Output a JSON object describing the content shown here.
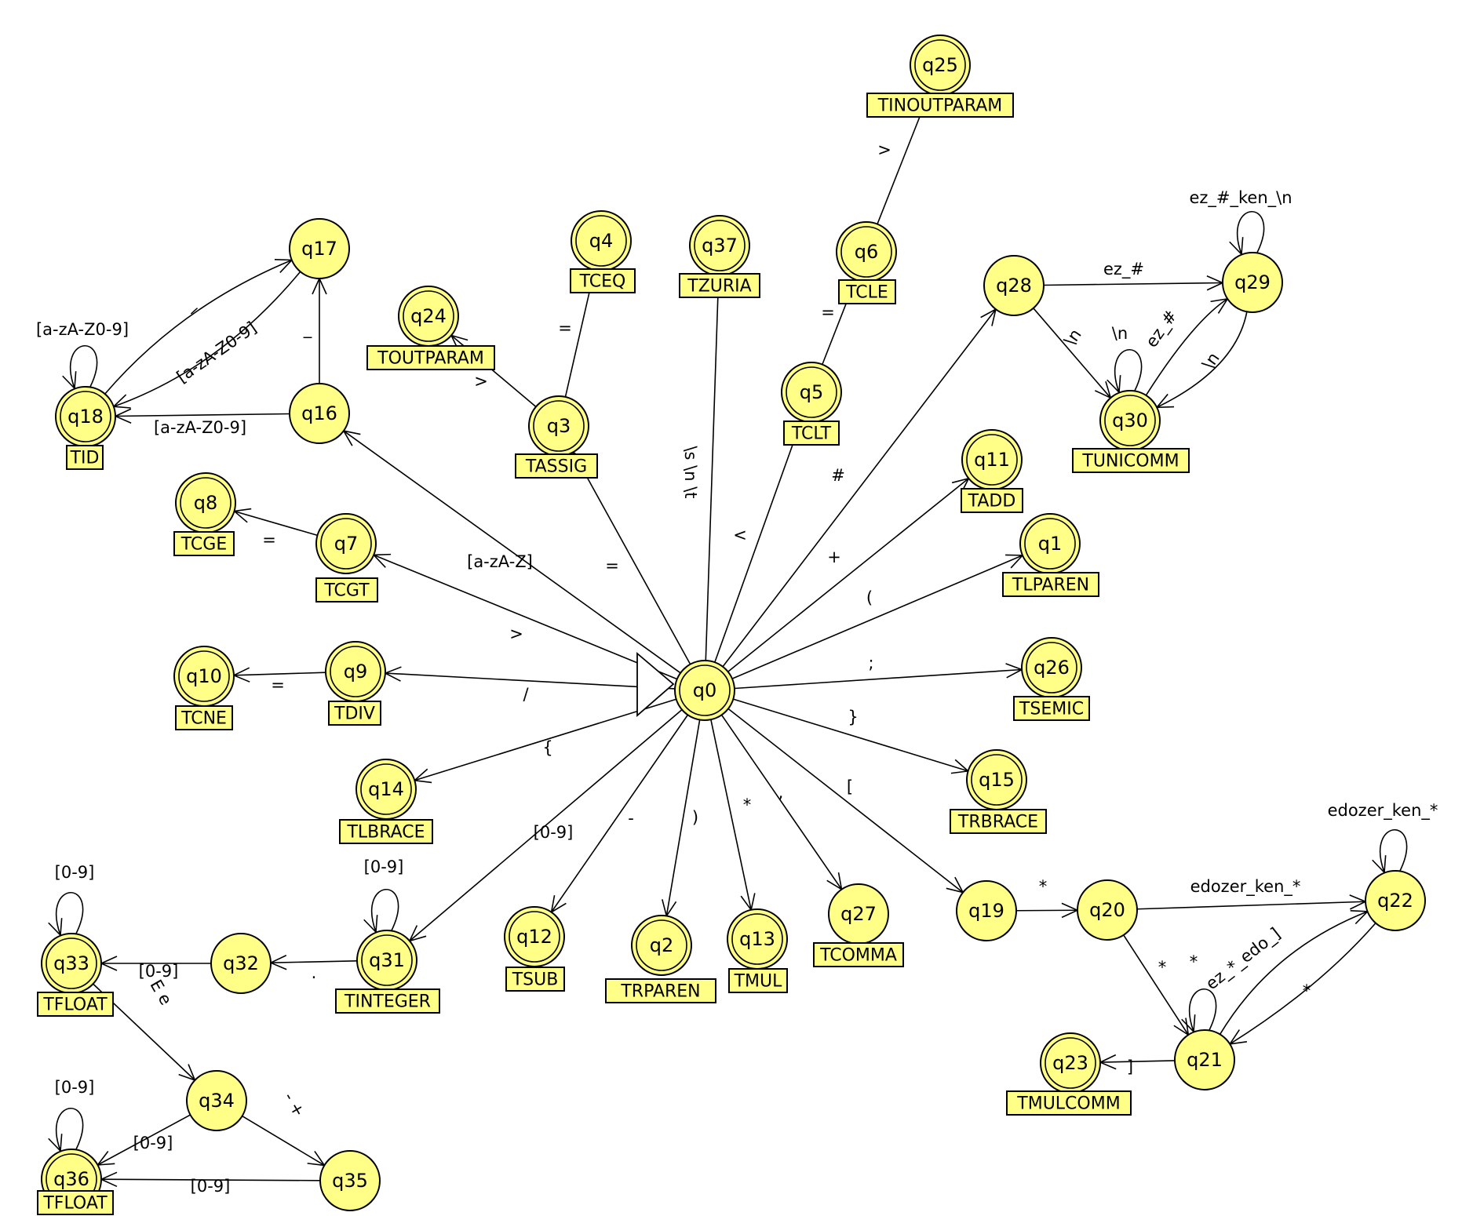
{
  "states": [
    {
      "id": "q0",
      "label": "q0",
      "final": true
    },
    {
      "id": "q1",
      "label": "q1",
      "final": true,
      "token": "TLPAREN"
    },
    {
      "id": "q2",
      "label": "q2",
      "final": true,
      "token": "TRPAREN"
    },
    {
      "id": "q3",
      "label": "q3",
      "final": true,
      "token": "TASSIG"
    },
    {
      "id": "q4",
      "label": "q4",
      "final": true,
      "token": "TCEQ"
    },
    {
      "id": "q5",
      "label": "q5",
      "final": true,
      "token": "TCLT"
    },
    {
      "id": "q6",
      "label": "q6",
      "final": true,
      "token": "TCLE"
    },
    {
      "id": "q7",
      "label": "q7",
      "final": true,
      "token": "TCGT"
    },
    {
      "id": "q8",
      "label": "q8",
      "final": true,
      "token": "TCGE"
    },
    {
      "id": "q9",
      "label": "q9",
      "final": true,
      "token": "TDIV"
    },
    {
      "id": "q10",
      "label": "q10",
      "final": true,
      "token": "TCNE"
    },
    {
      "id": "q11",
      "label": "q11",
      "final": true,
      "token": "TADD"
    },
    {
      "id": "q12",
      "label": "q12",
      "final": true,
      "token": "TSUB"
    },
    {
      "id": "q13",
      "label": "q13",
      "final": true,
      "token": "TMUL"
    },
    {
      "id": "q14",
      "label": "q14",
      "final": true,
      "token": "TLBRACE"
    },
    {
      "id": "q15",
      "label": "q15",
      "final": true,
      "token": "TRBRACE"
    },
    {
      "id": "q16",
      "label": "q16",
      "final": false
    },
    {
      "id": "q17",
      "label": "q17",
      "final": false
    },
    {
      "id": "q18",
      "label": "q18",
      "final": true,
      "token": "TID"
    },
    {
      "id": "q19",
      "label": "q19",
      "final": false
    },
    {
      "id": "q20",
      "label": "q20",
      "final": false
    },
    {
      "id": "q21",
      "label": "q21",
      "final": false
    },
    {
      "id": "q22",
      "label": "q22",
      "final": false
    },
    {
      "id": "q23",
      "label": "q23",
      "final": true,
      "token": "TMULCOMM"
    },
    {
      "id": "q24",
      "label": "q24",
      "final": true,
      "token": "TOUTPARAM"
    },
    {
      "id": "q25",
      "label": "q25",
      "final": true,
      "token": "TINOUTPARAM"
    },
    {
      "id": "q26",
      "label": "q26",
      "final": true,
      "token": "TSEMIC"
    },
    {
      "id": "q27",
      "label": "q27",
      "final": false,
      "token": "TCOMMA"
    },
    {
      "id": "q28",
      "label": "q28",
      "final": false
    },
    {
      "id": "q29",
      "label": "q29",
      "final": false
    },
    {
      "id": "q30",
      "label": "q30",
      "final": true,
      "token": "TUNICOMM"
    },
    {
      "id": "q31",
      "label": "q31",
      "final": true,
      "token": "TINTEGER"
    },
    {
      "id": "q32",
      "label": "q32",
      "final": false
    },
    {
      "id": "q33",
      "label": "q33",
      "final": true,
      "token": "TFLOAT"
    },
    {
      "id": "q34",
      "label": "q34",
      "final": false
    },
    {
      "id": "q35",
      "label": "q35",
      "final": false
    },
    {
      "id": "q36",
      "label": "q36",
      "final": true,
      "token": "TFLOAT"
    },
    {
      "id": "q37",
      "label": "q37",
      "final": true,
      "token": "TZURIA"
    }
  ],
  "transitions": [
    {
      "from": "q0",
      "to": "q1",
      "label": "("
    },
    {
      "from": "q0",
      "to": "q2",
      "label": ")"
    },
    {
      "from": "q0",
      "to": "q3",
      "label": "="
    },
    {
      "from": "q3",
      "to": "q4",
      "label": "="
    },
    {
      "from": "q3",
      "to": "q24",
      "label": ">"
    },
    {
      "from": "q0",
      "to": "q5",
      "label": "<"
    },
    {
      "from": "q5",
      "to": "q6",
      "label": "="
    },
    {
      "from": "q6",
      "to": "q25",
      "label": ">"
    },
    {
      "from": "q0",
      "to": "q7",
      "label": ">"
    },
    {
      "from": "q7",
      "to": "q8",
      "label": "="
    },
    {
      "from": "q0",
      "to": "q9",
      "label": "/"
    },
    {
      "from": "q9",
      "to": "q10",
      "label": "="
    },
    {
      "from": "q0",
      "to": "q11",
      "label": "+"
    },
    {
      "from": "q0",
      "to": "q12",
      "label": "-"
    },
    {
      "from": "q0",
      "to": "q13",
      "label": "*"
    },
    {
      "from": "q0",
      "to": "q14",
      "label": "{"
    },
    {
      "from": "q0",
      "to": "q15",
      "label": "}"
    },
    {
      "from": "q0",
      "to": "q16",
      "label": "[a-zA-Z]"
    },
    {
      "from": "q16",
      "to": "q18",
      "label": "[a-zA-Z0-9]"
    },
    {
      "from": "q16",
      "to": "q17",
      "label": "_"
    },
    {
      "from": "q18",
      "to": "q17",
      "label": "_"
    },
    {
      "from": "q17",
      "to": "q18",
      "label": "[a-zA-Z0-9]"
    },
    {
      "from": "q18",
      "to": "q18",
      "label": "[a-zA-Z0-9]"
    },
    {
      "from": "q0",
      "to": "q19",
      "label": "["
    },
    {
      "from": "q19",
      "to": "q20",
      "label": "*"
    },
    {
      "from": "q20",
      "to": "q22",
      "label": "edozer_ken_*"
    },
    {
      "from": "q20",
      "to": "q21",
      "label": "*"
    },
    {
      "from": "q22",
      "to": "q22",
      "label": "edozer_ken_*"
    },
    {
      "from": "q22",
      "to": "q21",
      "label": "*"
    },
    {
      "from": "q21",
      "to": "q22",
      "label": "ez_*_edo_]"
    },
    {
      "from": "q21",
      "to": "q21",
      "label": "*"
    },
    {
      "from": "q21",
      "to": "q23",
      "label": "]"
    },
    {
      "from": "q0",
      "to": "q26",
      "label": ";"
    },
    {
      "from": "q0",
      "to": "q27",
      "label": ","
    },
    {
      "from": "q0",
      "to": "q28",
      "label": "#"
    },
    {
      "from": "q28",
      "to": "q29",
      "label": "ez_#"
    },
    {
      "from": "q28",
      "to": "q30",
      "label": "\\n"
    },
    {
      "from": "q29",
      "to": "q29",
      "label": "ez_#_ken_\\n"
    },
    {
      "from": "q29",
      "to": "q30",
      "label": "\\n"
    },
    {
      "from": "q30",
      "to": "q29",
      "label": "ez_#"
    },
    {
      "from": "q30",
      "to": "q30",
      "label": "\\n"
    },
    {
      "from": "q0",
      "to": "q31",
      "label": "[0-9]"
    },
    {
      "from": "q31",
      "to": "q31",
      "label": "[0-9]"
    },
    {
      "from": "q31",
      "to": "q32",
      "label": "."
    },
    {
      "from": "q32",
      "to": "q33",
      "label": "[0-9]"
    },
    {
      "from": "q33",
      "to": "q33",
      "label": "[0-9]"
    },
    {
      "from": "q33",
      "to": "q34",
      "label": "E e"
    },
    {
      "from": "q34",
      "to": "q35",
      "label": "- +"
    },
    {
      "from": "q34",
      "to": "q36",
      "label": "[0-9]"
    },
    {
      "from": "q35",
      "to": "q36",
      "label": "[0-9]"
    },
    {
      "from": "q36",
      "to": "q36",
      "label": "[0-9]"
    },
    {
      "from": "q0",
      "to": "q37",
      "label": "\\s \\n \\t"
    }
  ]
}
